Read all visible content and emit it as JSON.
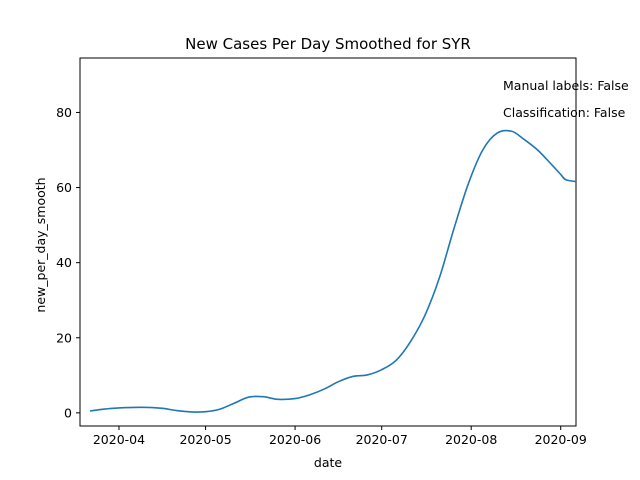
{
  "chart_data": {
    "type": "line",
    "title": "New Cases Per Day Smoothed for SYR",
    "xlabel": "date",
    "ylabel": "new_per_day_smooth",
    "x_tick_labels": [
      "2020-04",
      "2020-05",
      "2020-06",
      "2020-07",
      "2020-08",
      "2020-09"
    ],
    "x_tick_days": [
      10,
      40,
      71,
      101,
      132,
      163
    ],
    "y_ticks": [
      0,
      20,
      40,
      60,
      80
    ],
    "xlim_days": [
      -3.5,
      168.3
    ],
    "ylim": [
      -3.5,
      94.5
    ],
    "line_color": "#1f77b4",
    "annotations": [
      "Manual labels: False",
      "Classification: False"
    ],
    "series": [
      {
        "name": "new_per_day_smooth",
        "x_days": [
          0,
          5,
          10,
          15,
          20,
          25,
          30,
          35,
          40,
          45,
          50,
          55,
          60,
          65,
          71,
          76,
          81,
          86,
          91,
          96,
          101,
          106,
          111,
          116,
          121,
          126,
          131,
          136,
          141,
          146,
          150,
          155,
          160,
          163,
          165,
          170
        ],
        "values": [
          0.5,
          1.0,
          1.3,
          1.45,
          1.45,
          1.2,
          0.6,
          0.25,
          0.3,
          1.0,
          2.6,
          4.2,
          4.3,
          3.6,
          3.8,
          4.8,
          6.3,
          8.3,
          9.7,
          10.1,
          11.5,
          14.0,
          19.0,
          26.0,
          36.0,
          49.0,
          61.0,
          70.0,
          74.5,
          75.0,
          73.0,
          70.0,
          66.0,
          63.5,
          62.0,
          61.5
        ]
      }
    ]
  }
}
